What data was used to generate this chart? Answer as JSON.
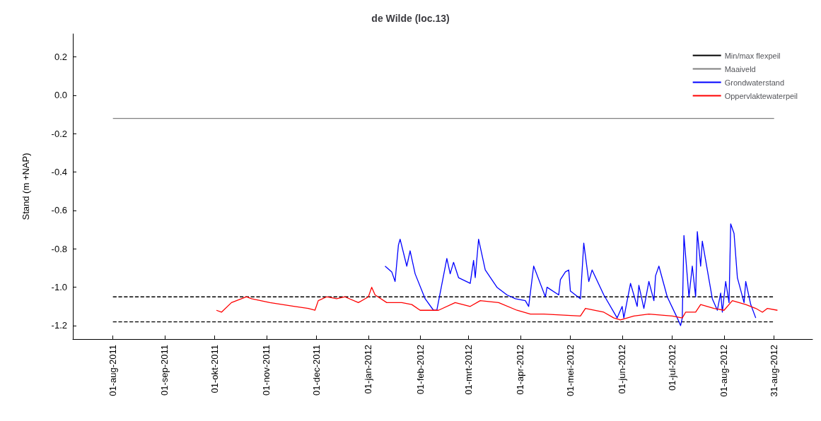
{
  "chart_data": {
    "type": "line",
    "title": "de Wilde (loc.13)",
    "ylabel": "Stand (m +NAP)",
    "legend": "top right",
    "xlim": [
      "2011-07-08",
      "2012-09-23"
    ],
    "xticks": [
      {
        "value": "2011-08-01",
        "label": "01-aug-2011"
      },
      {
        "value": "2011-09-01",
        "label": "01-sep-2011"
      },
      {
        "value": "2011-10-01",
        "label": "01-okt-2011"
      },
      {
        "value": "2011-11-01",
        "label": "01-nov-2011"
      },
      {
        "value": "2011-12-01",
        "label": "01-dec-2011"
      },
      {
        "value": "2012-01-01",
        "label": "01-jan-2012"
      },
      {
        "value": "2012-02-01",
        "label": "01-feb-2012"
      },
      {
        "value": "2012-03-01",
        "label": "01-mrt-2012"
      },
      {
        "value": "2012-04-01",
        "label": "01-apr-2012"
      },
      {
        "value": "2012-05-01",
        "label": "01-mei-2012"
      },
      {
        "value": "2012-06-01",
        "label": "01-jun-2012"
      },
      {
        "value": "2012-07-01",
        "label": "01-jul-2012"
      },
      {
        "value": "2012-08-01",
        "label": "01-aug-2012"
      },
      {
        "value": "2012-08-31",
        "label": "31-aug-2012"
      }
    ],
    "ylim": [
      -1.27,
      0.32
    ],
    "yticks": [
      {
        "value": -1.2,
        "label": "-1.2"
      },
      {
        "value": -1,
        "label": "-1.0"
      },
      {
        "value": -0.8,
        "label": "-0.8"
      },
      {
        "value": -0.6,
        "label": "-0.6"
      },
      {
        "value": -0.4,
        "label": "-0.4"
      },
      {
        "value": -0.2,
        "label": "-0.2"
      },
      {
        "value": 0,
        "label": "0.0"
      },
      {
        "value": 0.2,
        "label": "0.2"
      }
    ],
    "series": [
      {
        "name": "Min/max flexpeil",
        "color": "#000000",
        "line_style": "dashed",
        "x": [
          "2011-08-01",
          "2012-08-31"
        ],
        "values": [
          -1.05,
          -1.05
        ]
      },
      {
        "color": "#000000",
        "line_style": "dashed",
        "x": [
          "2011-08-01",
          "2012-08-31"
        ],
        "values": [
          -1.18,
          -1.18
        ]
      },
      {
        "name": "Maaiveld",
        "color": "#808080",
        "line_style": "solid",
        "x": [
          "2011-08-01",
          "2012-08-31"
        ],
        "values": [
          -0.12,
          -0.12
        ]
      },
      {
        "name": "Grondwaterstand",
        "color": "#0000ff",
        "line_style": "solid",
        "x": [
          "2012-01-11",
          "2012-01-15",
          "2012-01-17",
          "2012-01-19",
          "2012-01-20",
          "2012-01-24",
          "2012-01-26",
          "2012-01-29",
          "2012-02-04",
          "2012-02-09",
          "2012-02-11",
          "2012-02-17",
          "2012-02-19",
          "2012-02-21",
          "2012-02-24",
          "2012-03-02",
          "2012-03-04",
          "2012-03-05",
          "2012-03-07",
          "2012-03-11",
          "2012-03-18",
          "2012-03-24",
          "2012-03-29",
          "2012-04-04",
          "2012-04-06",
          "2012-04-09",
          "2012-04-16",
          "2012-04-17",
          "2012-04-24",
          "2012-04-25",
          "2012-04-28",
          "2012-04-30",
          "2012-05-01",
          "2012-05-07",
          "2012-05-09",
          "2012-05-12",
          "2012-05-14",
          "2012-05-21",
          "2012-05-29",
          "2012-06-01",
          "2012-06-02",
          "2012-06-06",
          "2012-06-10",
          "2012-06-11",
          "2012-06-14",
          "2012-06-17",
          "2012-06-20",
          "2012-06-21",
          "2012-06-23",
          "2012-06-28",
          "2012-07-04",
          "2012-07-06",
          "2012-07-07",
          "2012-07-08",
          "2012-07-11",
          "2012-07-13",
          "2012-07-15",
          "2012-07-16",
          "2012-07-18",
          "2012-07-19",
          "2012-07-25",
          "2012-07-28",
          "2012-07-30",
          "2012-07-31",
          "2012-08-02",
          "2012-08-04",
          "2012-08-05",
          "2012-08-07",
          "2012-08-09",
          "2012-08-13",
          "2012-08-14",
          "2012-08-17",
          "2012-08-20"
        ],
        "values": [
          -0.89,
          -0.92,
          -0.97,
          -0.78,
          -0.75,
          -0.89,
          -0.81,
          -0.93,
          -1.06,
          -1.12,
          -1.12,
          -0.85,
          -0.93,
          -0.87,
          -0.95,
          -0.98,
          -0.86,
          -0.95,
          -0.75,
          -0.91,
          -1.0,
          -1.04,
          -1.06,
          -1.07,
          -1.1,
          -0.89,
          -1.05,
          -1.0,
          -1.04,
          -0.96,
          -0.92,
          -0.91,
          -1.02,
          -1.06,
          -0.77,
          -0.97,
          -0.91,
          -1.04,
          -1.16,
          -1.1,
          -1.16,
          -0.98,
          -1.1,
          -0.99,
          -1.11,
          -0.97,
          -1.07,
          -0.94,
          -0.89,
          -1.05,
          -1.16,
          -1.2,
          -1.16,
          -0.73,
          -1.05,
          -0.89,
          -1.05,
          -0.71,
          -0.89,
          -0.76,
          -1.06,
          -1.12,
          -1.03,
          -1.13,
          -0.97,
          -1.08,
          -0.67,
          -0.72,
          -0.95,
          -1.08,
          -0.97,
          -1.09,
          -1.16
        ]
      },
      {
        "name": "Oppervlaktewaterpeil",
        "color": "#ff0000",
        "line_style": "solid",
        "x": [
          "2011-10-02",
          "2011-10-05",
          "2011-10-11",
          "2011-10-20",
          "2011-10-23",
          "2011-11-03",
          "2011-11-18",
          "2011-11-26",
          "2011-11-30",
          "2011-12-02",
          "2011-12-07",
          "2011-12-13",
          "2011-12-18",
          "2011-12-26",
          "2012-01-01",
          "2012-01-03",
          "2012-01-05",
          "2012-01-12",
          "2012-01-21",
          "2012-01-27",
          "2012-02-01",
          "2012-02-12",
          "2012-02-22",
          "2012-03-02",
          "2012-03-08",
          "2012-03-19",
          "2012-03-30",
          "2012-04-07",
          "2012-04-15",
          "2012-05-07",
          "2012-05-10",
          "2012-05-21",
          "2012-05-27",
          "2012-05-31",
          "2012-06-08",
          "2012-06-17",
          "2012-07-01",
          "2012-07-07",
          "2012-07-09",
          "2012-07-15",
          "2012-07-18",
          "2012-07-26",
          "2012-08-01",
          "2012-08-06",
          "2012-08-14",
          "2012-08-20",
          "2012-08-24",
          "2012-08-27",
          "2012-09-02"
        ],
        "values": [
          -1.12,
          -1.13,
          -1.08,
          -1.05,
          -1.06,
          -1.08,
          -1.1,
          -1.11,
          -1.12,
          -1.07,
          -1.05,
          -1.06,
          -1.05,
          -1.08,
          -1.05,
          -1.0,
          -1.04,
          -1.08,
          -1.08,
          -1.09,
          -1.12,
          -1.12,
          -1.08,
          -1.1,
          -1.07,
          -1.08,
          -1.12,
          -1.14,
          -1.14,
          -1.15,
          -1.11,
          -1.13,
          -1.16,
          -1.17,
          -1.15,
          -1.14,
          -1.15,
          -1.16,
          -1.13,
          -1.13,
          -1.09,
          -1.11,
          -1.12,
          -1.07,
          -1.09,
          -1.11,
          -1.13,
          -1.11,
          -1.12
        ]
      }
    ]
  }
}
